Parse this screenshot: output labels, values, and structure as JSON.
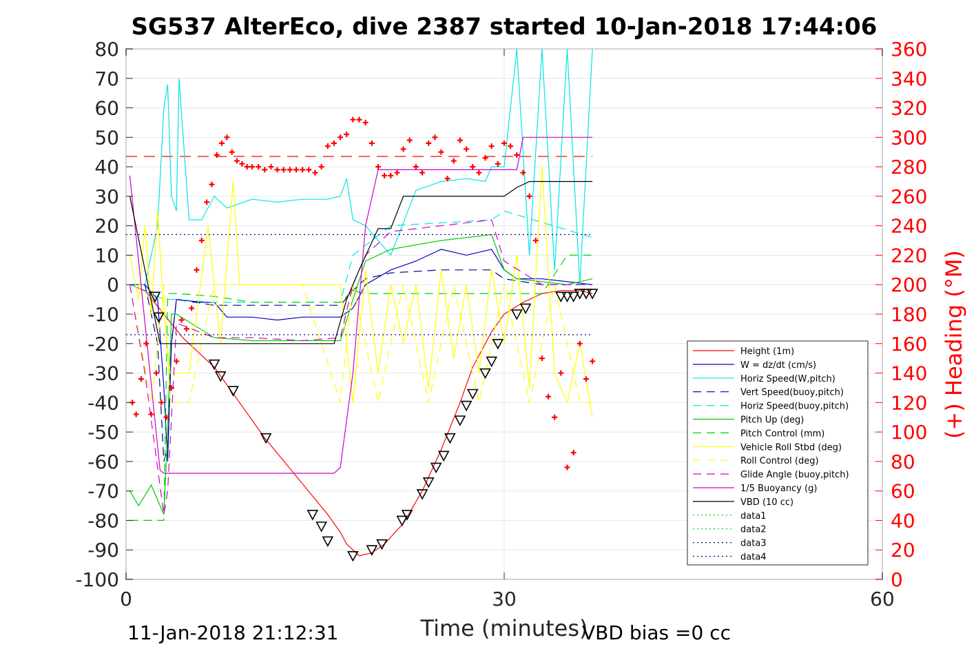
{
  "chart_data": {
    "type": "line",
    "title": "SG537 AlterEco, dive 2387 started 10-Jan-2018 17:44:06",
    "xlabel": "Time (minutes)",
    "ylabel_right": "(+) Heading (°M)",
    "xlim": [
      0,
      60
    ],
    "ylim": [
      -100,
      80
    ],
    "ylim_right": [
      0,
      360
    ],
    "xticks": [
      0,
      30,
      60
    ],
    "yticks": [
      -100,
      -90,
      -80,
      -70,
      -60,
      -50,
      -40,
      -30,
      -20,
      -10,
      0,
      10,
      20,
      30,
      40,
      50,
      60,
      70,
      80
    ],
    "yticks_right": [
      0,
      20,
      40,
      60,
      80,
      100,
      120,
      140,
      160,
      180,
      200,
      220,
      240,
      260,
      280,
      300,
      320,
      340,
      360
    ],
    "grid": true,
    "legend_position": "lower-right",
    "footer_left": "11-Jan-2018 21:12:31",
    "footer_right": "VBD bias =0 cc",
    "colors": {
      "red": "#ff0000",
      "blue": "#0000cc",
      "cyan": "#00e5e5",
      "navy": "#00008b",
      "green": "#00cc00",
      "yellow": "#ffff00",
      "magenta": "#cc00cc",
      "black": "#000000"
    },
    "series": [
      {
        "name": "Height (1m)",
        "color": "#ff0000",
        "dash": "",
        "x": [
          0.3,
          1.5,
          3.0,
          4.5,
          7.0,
          9.0,
          11.0,
          13.5,
          16.0,
          17.0,
          17.5,
          18.0,
          18.5,
          19.5,
          20.5,
          22.0,
          23.5,
          25.0,
          26.5,
          27.5,
          29.0,
          30.0,
          31.5,
          33.0,
          34.5,
          36.0,
          37.0
        ],
        "y": [
          0,
          -2,
          -10,
          -18,
          -28,
          -40,
          -52,
          -65,
          -78,
          -84,
          -88,
          -90,
          -92,
          -91,
          -88,
          -81,
          -70,
          -56,
          -40,
          -28,
          -16,
          -10,
          -6,
          -3,
          -2,
          -2,
          -3
        ]
      },
      {
        "name": "W = dz/dt (cm/s)",
        "color": "#0000cc",
        "dash": "",
        "x": [
          0.3,
          1.5,
          2.5,
          3.0,
          3.3,
          3.6,
          4.0,
          6.0,
          7.0,
          8.0,
          10.0,
          12.0,
          14.0,
          16.0,
          17.0,
          18.0,
          19.0,
          21.0,
          23.0,
          25.0,
          27.0,
          29.0,
          30.0,
          31.0,
          33.0,
          35.0,
          37.0
        ],
        "y": [
          0,
          0,
          -5,
          -35,
          -60,
          -20,
          -5,
          -6,
          -6,
          -11,
          -11,
          -12,
          -11,
          -11,
          -11,
          -8,
          0,
          5,
          8,
          12,
          10,
          12,
          5,
          2,
          2,
          1,
          0
        ]
      },
      {
        "name": "Horiz Speed(W,pitch)",
        "color": "#00e5e5",
        "dash": "",
        "x": [
          0.3,
          1.5,
          2.5,
          3.0,
          3.3,
          3.6,
          4.0,
          4.2,
          5.0,
          6.0,
          7.0,
          8.0,
          10.0,
          12.0,
          14.0,
          16.0,
          17.0,
          17.5,
          18.0,
          19.0,
          21.0,
          23.0,
          25.0,
          27.0,
          28.5,
          29.0,
          30.0,
          31.0,
          32.0,
          33.0,
          34.0,
          35.0,
          36.0,
          37.0
        ],
        "y": [
          0,
          0,
          20,
          60,
          68,
          30,
          25,
          70,
          22,
          22,
          30,
          26,
          29,
          28,
          29,
          29,
          30,
          36,
          22,
          20,
          10,
          32,
          35,
          36,
          35,
          40,
          40,
          80,
          10,
          80,
          5,
          80,
          0,
          80
        ]
      },
      {
        "name": "Vert Speed(buoy,pitch)",
        "color": "#00008b",
        "dash": "12,8",
        "x": [
          0.3,
          1.5,
          2.5,
          3.0,
          3.3,
          3.6,
          4.0,
          7.0,
          10.0,
          14.0,
          17.0,
          18.0,
          19.0,
          21.0,
          25.0,
          29.0,
          30.0,
          33.0,
          37.0
        ],
        "y": [
          0,
          0,
          -20,
          -60,
          -55,
          -20,
          -5,
          -7,
          -7,
          -7,
          -7,
          -2,
          2,
          4,
          5,
          5,
          2,
          0,
          0
        ]
      },
      {
        "name": "Horiz Speed(buoy,pitch)",
        "color": "#00e5e5",
        "dash": "12,8",
        "x": [
          0.3,
          3.0,
          4.0,
          7.0,
          10.0,
          14.0,
          17.0,
          18.0,
          21.0,
          25.0,
          29.0,
          30.0,
          37.0
        ],
        "y": [
          0,
          -5,
          -5,
          -6,
          -6,
          -6,
          -6,
          10,
          20,
          21,
          22,
          25,
          16
        ]
      },
      {
        "name": "Pitch Up (deg)",
        "color": "#00cc00",
        "dash": "",
        "x": [
          0.3,
          1.0,
          2.0,
          3.0,
          3.3,
          3.6,
          4.0,
          7.0,
          10.0,
          14.0,
          17.0,
          18.0,
          19.0,
          21.0,
          25.0,
          29.0,
          30.0,
          31.0,
          33.0,
          35.0,
          37.0
        ],
        "y": [
          -70,
          -75,
          -68,
          -78,
          -50,
          -10,
          -10,
          -18,
          -19,
          -19,
          -19,
          -5,
          8,
          12,
          15,
          17,
          5,
          2,
          1,
          0,
          2
        ]
      },
      {
        "name": "Pitch Control (mm)",
        "color": "#00cc00",
        "dash": "12,8",
        "x": [
          0.3,
          2.0,
          3.0,
          3.3,
          4.0,
          7.0,
          10.0,
          14.0,
          17.0,
          18.0,
          19.0,
          21.0,
          25.0,
          29.0,
          30.0,
          33.0,
          35.0,
          37.0
        ],
        "y": [
          -80,
          -80,
          -80,
          -3,
          -3,
          -4,
          -6,
          -6,
          -6,
          -2,
          -3,
          -3,
          -3,
          -3,
          -3,
          -3,
          10,
          10
        ]
      },
      {
        "name": "Vehicle Roll Stbd (deg)",
        "color": "#ffff00",
        "dash": "",
        "x": [
          0.3,
          1.0,
          1.5,
          2.0,
          2.5,
          3.0,
          3.5,
          5.0,
          6.5,
          7.5,
          8.5,
          9.0,
          14.0,
          17.0,
          18.0,
          19.0,
          20.0,
          21.0,
          22.0,
          23.0,
          24.0,
          25.0,
          26.0,
          27.0,
          28.0,
          29.0,
          30.0,
          31.0,
          32.0,
          33.0,
          34.0,
          35.0,
          36.0,
          37.0
        ],
        "y": [
          10,
          -5,
          20,
          -10,
          25,
          -10,
          -30,
          -30,
          20,
          -20,
          35,
          0,
          0,
          0,
          -40,
          5,
          -30,
          0,
          -20,
          0,
          -35,
          5,
          -25,
          0,
          -30,
          5,
          -20,
          10,
          -35,
          40,
          -30,
          -40,
          -20,
          -45
        ]
      },
      {
        "name": "Roll Control (deg)",
        "color": "#ffff00",
        "dash": "12,8",
        "x": [
          0.3,
          2.0,
          3.0,
          3.5,
          5.0,
          7.0,
          9.0,
          14.0,
          17.0,
          18.0,
          20.0,
          22.0,
          24.0,
          26.0,
          28.0,
          30.0,
          32.0,
          34.0,
          36.0,
          37.0
        ],
        "y": [
          0,
          -40,
          0,
          -40,
          -40,
          0,
          0,
          0,
          -40,
          0,
          -40,
          0,
          -40,
          0,
          -40,
          0,
          -40,
          0,
          -40,
          -40
        ]
      },
      {
        "name": "Glide Angle (buoy,pitch)",
        "color": "#cc00cc",
        "dash": "12,8",
        "x": [
          0.3,
          1.5,
          3.0,
          3.3,
          4.0,
          7.0,
          10.0,
          14.0,
          17.0,
          18.0,
          19.0,
          21.0,
          25.0,
          29.0,
          30.0,
          33.0,
          37.0
        ],
        "y": [
          0,
          -30,
          -78,
          -70,
          -13,
          -18,
          -18,
          -19,
          -18,
          0,
          10,
          18,
          20,
          22,
          8,
          0,
          0
        ]
      },
      {
        "name": "1/5 Buoyancy (g)",
        "color": "#cc00cc",
        "dash": "",
        "x": [
          0.3,
          2.7,
          3.0,
          16.5,
          17.0,
          18.0,
          19.0,
          20.0,
          21.5,
          29.0,
          31.0,
          31.5,
          37.0
        ],
        "y": [
          37,
          -63,
          -64,
          -64,
          -62,
          -30,
          20,
          39,
          39,
          39,
          39,
          50,
          50
        ]
      },
      {
        "name": "VBD (10 cc)",
        "color": "#000000",
        "dash": "",
        "x": [
          0.3,
          2.7,
          3.0,
          16.5,
          17.5,
          18.5,
          20.0,
          21.0,
          22.0,
          30.0,
          31.0,
          32.0,
          37.0
        ],
        "y": [
          30,
          -20,
          -20,
          -20,
          -5,
          5,
          19,
          19,
          30,
          30,
          33,
          35,
          35
        ]
      },
      {
        "name": "data1",
        "color": "#00cc00",
        "dash": "2,4",
        "x": [],
        "y": []
      },
      {
        "name": "data2",
        "color": "#00cc00",
        "dash": "2,4",
        "x": [],
        "y": []
      },
      {
        "name": "data3",
        "color": "#00008b",
        "dash": "2,4",
        "x": [
          0,
          37
        ],
        "y": [
          17,
          17
        ]
      },
      {
        "name": "data4",
        "color": "#00008b",
        "dash": "2,4",
        "x": [
          0,
          37
        ],
        "y": [
          -17,
          -17
        ]
      }
    ],
    "heading_mean_line": {
      "y": 43.5,
      "color": "#ff0000",
      "dash": "16,10",
      "x": [
        0,
        37
      ]
    },
    "heading_points": {
      "x": [
        0.5,
        0.8,
        1.2,
        1.6,
        2.0,
        2.4,
        2.8,
        3.2,
        3.6,
        4.0,
        4.4,
        4.8,
        5.2,
        5.6,
        6.0,
        6.4,
        6.8,
        7.2,
        7.6,
        8.0,
        8.4,
        8.8,
        9.2,
        9.6,
        10.0,
        10.5,
        11.0,
        11.5,
        12.0,
        12.5,
        13.0,
        13.5,
        14.0,
        14.5,
        15.0,
        15.5,
        16.0,
        16.5,
        17.0,
        17.5,
        18.0,
        18.5,
        19.0,
        19.5,
        20.0,
        20.5,
        21.0,
        21.5,
        22.0,
        22.5,
        23.0,
        23.5,
        24.0,
        24.5,
        25.0,
        25.5,
        26.0,
        26.5,
        27.0,
        27.5,
        28.0,
        28.5,
        29.0,
        29.5,
        30.0,
        30.5,
        31.0,
        31.5,
        32.0,
        32.5,
        33.0,
        33.5,
        34.0,
        34.5,
        35.0,
        35.5,
        36.0,
        36.5,
        37.0
      ],
      "y": [
        -40,
        -44,
        -32,
        -20,
        -44,
        -30,
        -40,
        -45,
        -35,
        -26,
        -12,
        -15,
        -8,
        5,
        15,
        28,
        34,
        44,
        48,
        50,
        45,
        42,
        41,
        40,
        40,
        40,
        39,
        40,
        39,
        39,
        39,
        39,
        39,
        39,
        38,
        40,
        47,
        48,
        50,
        51,
        56,
        56,
        55,
        48,
        40,
        37,
        37,
        38,
        46,
        49,
        40,
        38,
        48,
        50,
        45,
        36,
        42,
        49,
        46,
        40,
        38,
        43,
        47,
        41,
        48,
        47,
        44,
        38,
        30,
        15,
        -25,
        -38,
        -45,
        -30,
        -62,
        -57,
        -20,
        -32,
        -26
      ]
    },
    "tri_points": {
      "x": [
        2.3,
        2.6,
        7.0,
        7.5,
        8.5,
        11.1,
        14.8,
        15.5,
        16.0,
        18.0,
        19.5,
        20.3,
        21.9,
        22.3,
        23.5,
        24.0,
        24.6,
        25.2,
        25.7,
        26.5,
        27.0,
        27.5,
        28.5,
        29.0,
        29.5,
        31.0,
        31.7,
        34.5,
        35.0,
        35.5,
        36.0,
        36.5,
        37.0
      ],
      "y": [
        -4,
        -11,
        -27,
        -31,
        -36,
        -52,
        -78,
        -82,
        -87,
        -92,
        -90,
        -88,
        -80,
        -78,
        -71,
        -67,
        -62,
        -58,
        -52,
        -46,
        -41,
        -37,
        -30,
        -26,
        -20,
        -10,
        -8,
        -4,
        -4,
        -4,
        -3,
        -3,
        -3
      ]
    }
  }
}
